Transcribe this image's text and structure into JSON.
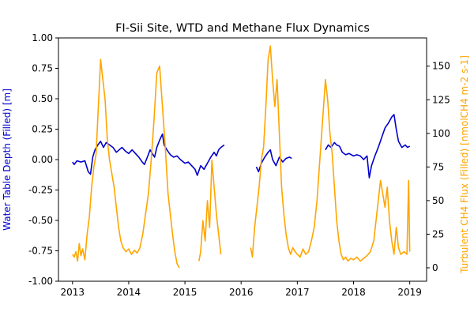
{
  "chart_data": {
    "type": "line",
    "title": "FI-Sii Site, WTD and Methane Flux Dynamics",
    "xlabel": "",
    "ylabel_left": "Water Table Depth (Filled) [m]",
    "ylabel_right": "Turbulent CH4 Flux (Filled) [nmolCH4 m-2 s-1]",
    "x_ticks": [
      "2013",
      "2014",
      "2015",
      "2016",
      "2017",
      "2018",
      "2019"
    ],
    "xlim": [
      2012.75,
      2019.3
    ],
    "ylim_left": [
      -1.0,
      1.0
    ],
    "ylim_right": [
      -10,
      171
    ],
    "y_ticks_left": [
      -1.0,
      -0.75,
      -0.5,
      -0.25,
      0.0,
      0.25,
      0.5,
      0.75,
      1.0
    ],
    "y_ticks_right": [
      0,
      25,
      50,
      75,
      100,
      125,
      150
    ],
    "grid": false,
    "series": [
      {
        "axis": "left",
        "color": "#0000cc",
        "segments": [
          [
            [
              2013.0,
              -0.02
            ],
            [
              2013.03,
              -0.04
            ],
            [
              2013.08,
              -0.01
            ],
            [
              2013.15,
              -0.02
            ],
            [
              2013.22,
              -0.01
            ],
            [
              2013.28,
              -0.1
            ],
            [
              2013.32,
              -0.12
            ],
            [
              2013.36,
              0.02
            ],
            [
              2013.4,
              0.08
            ],
            [
              2013.45,
              0.12
            ],
            [
              2013.5,
              0.15
            ],
            [
              2013.55,
              0.1
            ],
            [
              2013.6,
              0.14
            ],
            [
              2013.66,
              0.12
            ],
            [
              2013.72,
              0.1
            ],
            [
              2013.78,
              0.06
            ],
            [
              2013.83,
              0.08
            ],
            [
              2013.88,
              0.1
            ],
            [
              2013.94,
              0.07
            ],
            [
              2014.0,
              0.05
            ],
            [
              2014.06,
              0.08
            ],
            [
              2014.12,
              0.05
            ],
            [
              2014.18,
              0.02
            ],
            [
              2014.24,
              -0.02
            ],
            [
              2014.28,
              -0.04
            ],
            [
              2014.34,
              0.03
            ],
            [
              2014.38,
              0.08
            ],
            [
              2014.42,
              0.05
            ],
            [
              2014.46,
              0.02
            ],
            [
              2014.5,
              0.1
            ],
            [
              2014.55,
              0.16
            ],
            [
              2014.6,
              0.21
            ],
            [
              2014.63,
              0.12
            ],
            [
              2014.68,
              0.08
            ],
            [
              2014.74,
              0.04
            ],
            [
              2014.8,
              0.02
            ],
            [
              2014.86,
              0.03
            ],
            [
              2014.92,
              0.0
            ],
            [
              2015.0,
              -0.03
            ],
            [
              2015.06,
              -0.02
            ],
            [
              2015.12,
              -0.05
            ],
            [
              2015.18,
              -0.08
            ],
            [
              2015.22,
              -0.13
            ],
            [
              2015.28,
              -0.05
            ],
            [
              2015.34,
              -0.08
            ],
            [
              2015.4,
              -0.03
            ],
            [
              2015.46,
              0.02
            ],
            [
              2015.52,
              0.06
            ],
            [
              2015.56,
              0.03
            ],
            [
              2015.6,
              0.08
            ],
            [
              2015.64,
              0.1
            ],
            [
              2015.7,
              0.12
            ]
          ],
          [
            [
              2016.27,
              -0.06
            ],
            [
              2016.31,
              -0.1
            ],
            [
              2016.36,
              -0.03
            ],
            [
              2016.42,
              0.02
            ],
            [
              2016.48,
              0.06
            ],
            [
              2016.52,
              0.08
            ],
            [
              2016.56,
              0.0
            ],
            [
              2016.62,
              -0.05
            ],
            [
              2016.68,
              0.02
            ],
            [
              2016.74,
              -0.02
            ],
            [
              2016.8,
              0.01
            ],
            [
              2016.86,
              0.02
            ],
            [
              2016.9,
              0.01
            ]
          ],
          [
            [
              2017.5,
              0.08
            ],
            [
              2017.55,
              0.12
            ],
            [
              2017.6,
              0.1
            ],
            [
              2017.66,
              0.14
            ],
            [
              2017.7,
              0.12
            ],
            [
              2017.75,
              0.11
            ],
            [
              2017.8,
              0.06
            ],
            [
              2017.86,
              0.04
            ],
            [
              2017.92,
              0.05
            ],
            [
              2018.0,
              0.03
            ],
            [
              2018.06,
              0.04
            ],
            [
              2018.12,
              0.03
            ],
            [
              2018.18,
              0.0
            ],
            [
              2018.24,
              0.03
            ],
            [
              2018.28,
              -0.15
            ],
            [
              2018.32,
              -0.05
            ],
            [
              2018.38,
              0.03
            ],
            [
              2018.44,
              0.1
            ],
            [
              2018.5,
              0.18
            ],
            [
              2018.56,
              0.26
            ],
            [
              2018.62,
              0.3
            ],
            [
              2018.68,
              0.35
            ],
            [
              2018.72,
              0.37
            ],
            [
              2018.76,
              0.25
            ],
            [
              2018.8,
              0.15
            ],
            [
              2018.86,
              0.1
            ],
            [
              2018.92,
              0.12
            ],
            [
              2018.96,
              0.1
            ],
            [
              2019.0,
              0.11
            ]
          ]
        ]
      },
      {
        "axis": "right",
        "color": "#ffa500",
        "segments": [
          [
            [
              2013.0,
              10
            ],
            [
              2013.03,
              8
            ],
            [
              2013.06,
              12
            ],
            [
              2013.09,
              5
            ],
            [
              2013.12,
              18
            ],
            [
              2013.15,
              9
            ],
            [
              2013.18,
              14
            ],
            [
              2013.22,
              6
            ],
            [
              2013.26,
              25
            ],
            [
              2013.3,
              38
            ],
            [
              2013.34,
              60
            ],
            [
              2013.38,
              75
            ],
            [
              2013.42,
              85
            ],
            [
              2013.46,
              120
            ],
            [
              2013.5,
              155
            ],
            [
              2013.54,
              140
            ],
            [
              2013.58,
              125
            ],
            [
              2013.62,
              95
            ],
            [
              2013.66,
              80
            ],
            [
              2013.7,
              70
            ],
            [
              2013.74,
              60
            ],
            [
              2013.78,
              45
            ],
            [
              2013.82,
              30
            ],
            [
              2013.86,
              20
            ],
            [
              2013.9,
              15
            ],
            [
              2013.95,
              12
            ],
            [
              2014.0,
              14
            ],
            [
              2014.05,
              10
            ],
            [
              2014.1,
              13
            ],
            [
              2014.15,
              11
            ],
            [
              2014.2,
              15
            ],
            [
              2014.25,
              25
            ],
            [
              2014.3,
              40
            ],
            [
              2014.35,
              55
            ],
            [
              2014.4,
              80
            ],
            [
              2014.45,
              110
            ],
            [
              2014.5,
              145
            ],
            [
              2014.55,
              150
            ],
            [
              2014.6,
              120
            ],
            [
              2014.65,
              90
            ],
            [
              2014.7,
              55
            ],
            [
              2014.74,
              40
            ],
            [
              2014.78,
              25
            ],
            [
              2014.82,
              12
            ],
            [
              2014.86,
              3
            ],
            [
              2014.9,
              0
            ]
          ],
          [
            [
              2015.25,
              5
            ],
            [
              2015.28,
              12
            ],
            [
              2015.32,
              35
            ],
            [
              2015.36,
              20
            ],
            [
              2015.4,
              50
            ],
            [
              2015.44,
              30
            ],
            [
              2015.48,
              80
            ],
            [
              2015.52,
              60
            ],
            [
              2015.56,
              40
            ],
            [
              2015.6,
              25
            ],
            [
              2015.64,
              10
            ]
          ],
          [
            [
              2016.17,
              15
            ],
            [
              2016.2,
              8
            ],
            [
              2016.24,
              30
            ],
            [
              2016.28,
              45
            ],
            [
              2016.32,
              60
            ],
            [
              2016.36,
              80
            ],
            [
              2016.4,
              90
            ],
            [
              2016.44,
              120
            ],
            [
              2016.48,
              155
            ],
            [
              2016.52,
              165
            ],
            [
              2016.56,
              140
            ],
            [
              2016.6,
              120
            ],
            [
              2016.64,
              140
            ],
            [
              2016.68,
              100
            ],
            [
              2016.72,
              60
            ],
            [
              2016.76,
              40
            ],
            [
              2016.8,
              25
            ],
            [
              2016.84,
              15
            ],
            [
              2016.88,
              10
            ],
            [
              2016.92,
              15
            ],
            [
              2016.96,
              12
            ],
            [
              2017.0,
              10
            ],
            [
              2017.05,
              8
            ],
            [
              2017.1,
              14
            ],
            [
              2017.15,
              10
            ],
            [
              2017.2,
              12
            ],
            [
              2017.25,
              20
            ],
            [
              2017.3,
              30
            ],
            [
              2017.35,
              50
            ],
            [
              2017.4,
              80
            ],
            [
              2017.45,
              110
            ],
            [
              2017.5,
              140
            ],
            [
              2017.54,
              125
            ],
            [
              2017.58,
              100
            ],
            [
              2017.62,
              85
            ],
            [
              2017.66,
              60
            ],
            [
              2017.7,
              35
            ],
            [
              2017.74,
              20
            ],
            [
              2017.78,
              10
            ],
            [
              2017.82,
              6
            ],
            [
              2017.86,
              8
            ],
            [
              2017.9,
              5
            ],
            [
              2017.95,
              7
            ],
            [
              2018.0,
              6
            ],
            [
              2018.06,
              8
            ],
            [
              2018.12,
              5
            ],
            [
              2018.18,
              7
            ],
            [
              2018.24,
              9
            ],
            [
              2018.3,
              12
            ],
            [
              2018.36,
              20
            ],
            [
              2018.4,
              35
            ],
            [
              2018.44,
              50
            ],
            [
              2018.48,
              65
            ],
            [
              2018.52,
              55
            ],
            [
              2018.56,
              45
            ],
            [
              2018.6,
              60
            ],
            [
              2018.64,
              35
            ],
            [
              2018.68,
              20
            ],
            [
              2018.72,
              10
            ],
            [
              2018.76,
              30
            ],
            [
              2018.8,
              15
            ],
            [
              2018.84,
              10
            ],
            [
              2018.9,
              12
            ],
            [
              2018.95,
              10
            ],
            [
              2018.98,
              65
            ],
            [
              2019.0,
              12
            ]
          ]
        ]
      }
    ]
  }
}
